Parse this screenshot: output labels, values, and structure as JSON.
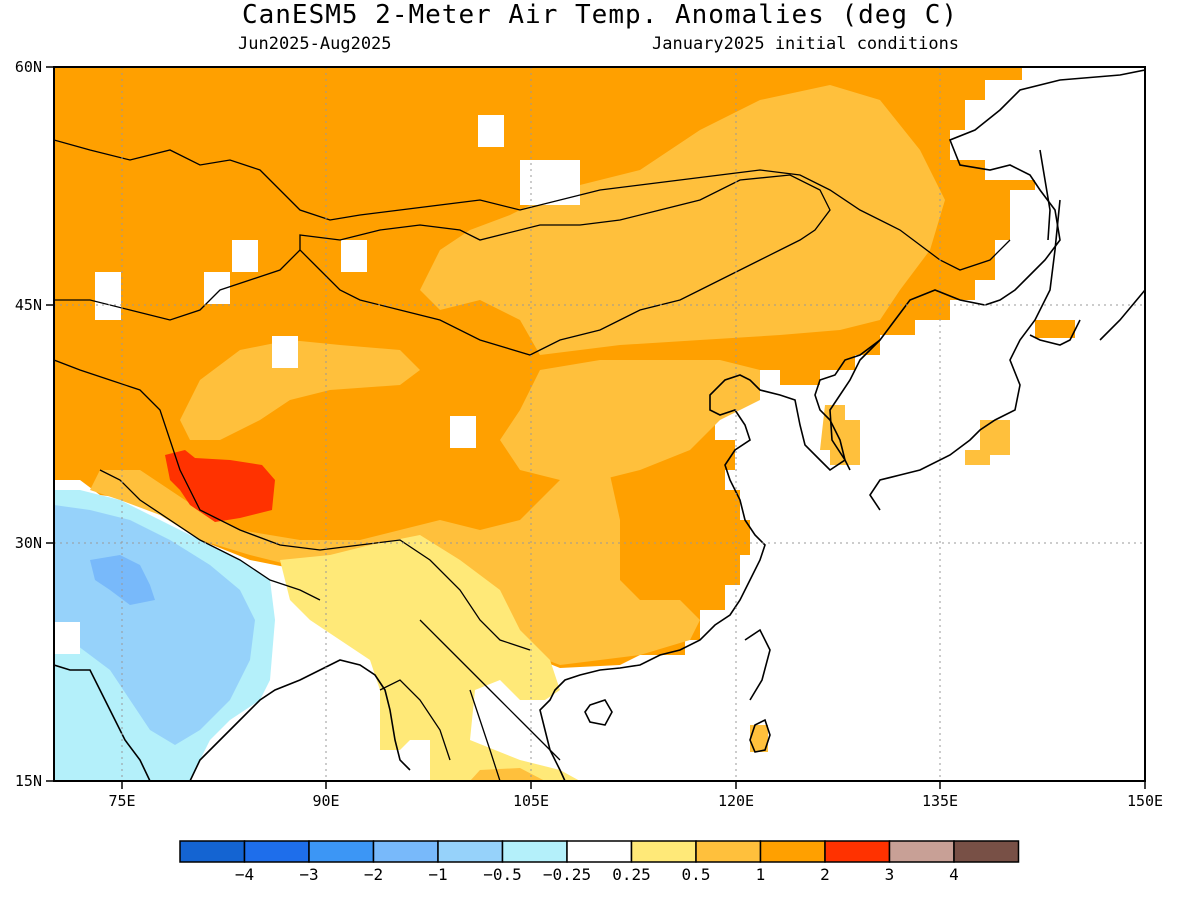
{
  "header": {
    "title": "CanESM5 2-Meter Air Temp. Anomalies (deg C)",
    "period": "Jun2025-Aug2025",
    "init": "January2025 initial conditions"
  },
  "axes": {
    "lat_labels": [
      "60N",
      "45N",
      "30N",
      "15N"
    ],
    "lon_labels": [
      "75E",
      "90E",
      "105E",
      "120E",
      "135E",
      "150E"
    ]
  },
  "colorbar": {
    "labels": [
      "−4",
      "−3",
      "−2",
      "−1",
      "−0.5",
      "−0.25",
      "0.25",
      "0.5",
      "1",
      "2",
      "3",
      "4"
    ],
    "colors": [
      "#1464d2",
      "#1e6eeb",
      "#3c96f5",
      "#78b9fa",
      "#96d2fa",
      "#b4f0fa",
      "#ffffff",
      "#ffe978",
      "#ffc03c",
      "#ffa000",
      "#ff3200",
      "#c8a096",
      "#785046"
    ]
  },
  "map_colors": {
    "land_outline": "#000000",
    "ocean": "#ffffff"
  }
}
